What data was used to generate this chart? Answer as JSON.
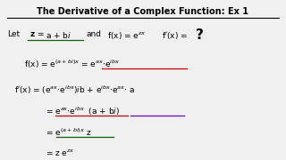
{
  "title": "The Derivative of a Complex Function: Ex 1",
  "bg_color": "#f0f0f0",
  "text_color": "#000000",
  "underline_color_green": "#006400",
  "underline_color_red": "#cc0000",
  "underline_color_purple": "#6600cc"
}
